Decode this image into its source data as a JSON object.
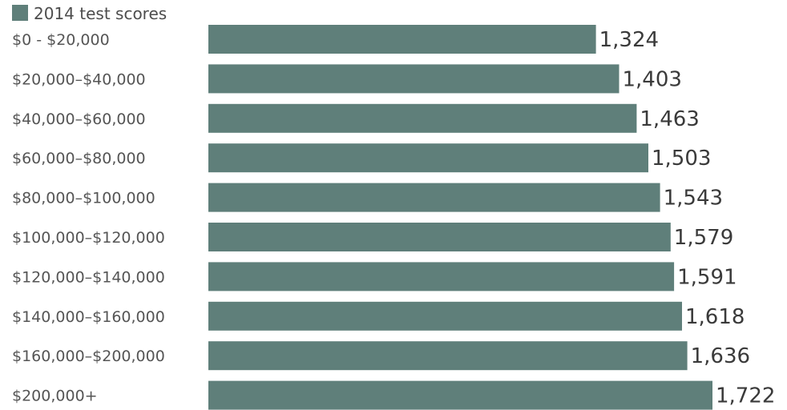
{
  "chart_data": {
    "type": "bar",
    "orientation": "horizontal",
    "categories": [
      "$0 - $20,000",
      "$20,000–$40,000",
      "$40,000–$60,000",
      "$60,000–$80,000",
      "$80,000–$100,000",
      "$100,000–$120,000",
      "$120,000–$140,000",
      "$140,000–$160,000",
      "$160,000–$200,000",
      "$200,000+"
    ],
    "series": [
      {
        "name": "2014 test scores",
        "values": [
          1324,
          1403,
          1463,
          1503,
          1543,
          1579,
          1591,
          1618,
          1636,
          1722
        ],
        "value_labels": [
          "1,324",
          "1,403",
          "1,463",
          "1,503",
          "1,543",
          "1,579",
          "1,591",
          "1,618",
          "1,636",
          "1,722"
        ]
      }
    ],
    "title": "",
    "xlabel": "",
    "ylabel": "",
    "xlim": [
      0,
      1722
    ],
    "grid": false,
    "legend": "top-left",
    "colors": {
      "bar": "#5f7f7a",
      "label": "#555555",
      "value": "#3a3a3a"
    }
  }
}
